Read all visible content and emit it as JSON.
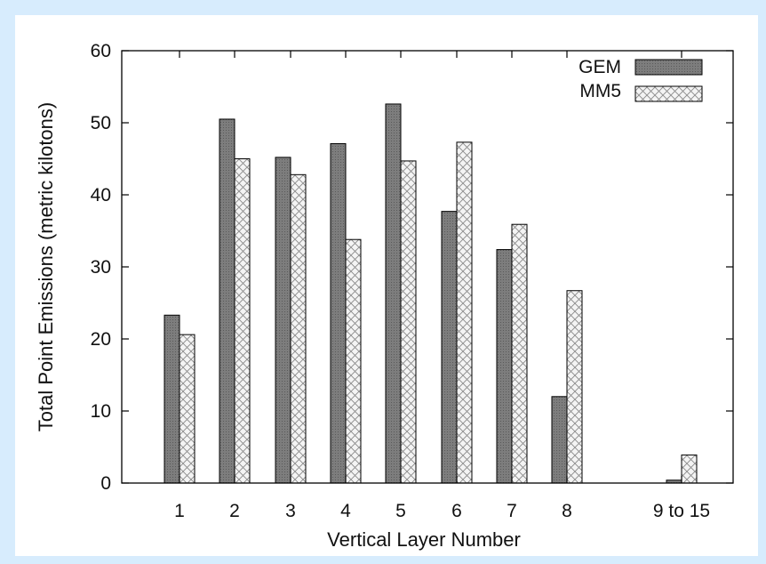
{
  "colors": {
    "page_background": "#d7ecfd",
    "panel_background": "#ffffff",
    "gem_fill": "#7d7d7d",
    "mm5_fill": "#f4f4f4",
    "axis": "#000000"
  },
  "chart_data": {
    "type": "bar",
    "title": "",
    "xlabel": "Vertical Layer Number",
    "ylabel": "Total Point Emissions (metric kilotons)",
    "categories": [
      "1",
      "2",
      "3",
      "4",
      "5",
      "6",
      "7",
      "8",
      "9 to 15"
    ],
    "ylim": [
      0,
      60
    ],
    "yticks": [
      0,
      10,
      20,
      30,
      40,
      50,
      60
    ],
    "grid": false,
    "legend_position": "top-right",
    "series": [
      {
        "name": "GEM",
        "pattern": "dark-gray-dots",
        "values": [
          23.3,
          50.5,
          45.2,
          47.1,
          52.6,
          37.7,
          32.4,
          12.0,
          0.4
        ]
      },
      {
        "name": "MM5",
        "pattern": "light-crosshatch",
        "values": [
          20.6,
          45.0,
          42.8,
          33.8,
          44.7,
          47.3,
          35.9,
          26.7,
          3.9
        ]
      }
    ]
  }
}
